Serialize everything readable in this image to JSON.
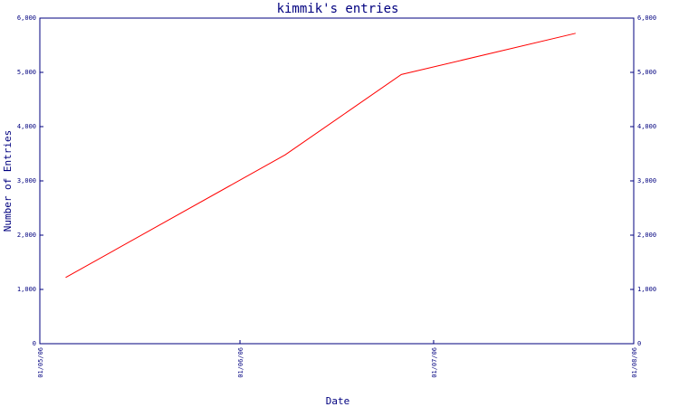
{
  "chart_data": {
    "type": "line",
    "title": "kimmik's entries",
    "xlabel": "Date",
    "ylabel": "Number of Entries",
    "x_ticks": [
      "01/05/06",
      "01/06/06",
      "01/07/06",
      "01/08/06"
    ],
    "y_ticks": [
      "0",
      "1,000",
      "2,000",
      "3,000",
      "4,000",
      "5,000",
      "6,000"
    ],
    "ylim": [
      0,
      6000
    ],
    "xlim": [
      "2006-05-01",
      "2006-08-01"
    ],
    "right_axis_mirrored": true,
    "grid": false,
    "series": [
      {
        "x": [
          "2006-05-05",
          "2006-06-08",
          "2006-06-26",
          "2006-07-23"
        ],
        "values": [
          1220,
          3480,
          4960,
          5720
        ]
      }
    ],
    "colors": {
      "axis": "#00007f",
      "line": "#ff0000",
      "background": "#ffffff"
    }
  }
}
